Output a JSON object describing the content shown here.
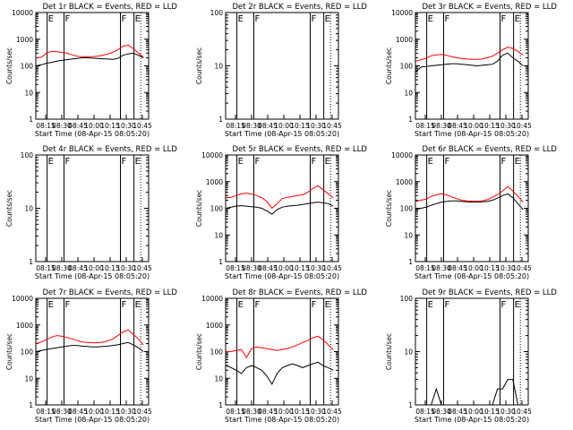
{
  "figure": {
    "xlabel": "Start Time (08-Apr-15 08:05:20)",
    "ylabel": "Counts/sec",
    "xticks": [
      "08:15",
      "08:30",
      "08:45",
      "10:00",
      "10:15",
      "10:30",
      "10:45"
    ],
    "marker_labels": [
      "E",
      "F",
      "F",
      "E"
    ],
    "colors": {
      "events": "#000000",
      "lld": "#ff0000"
    }
  },
  "chart_data": [
    {
      "type": "line",
      "title": "Det 1r BLACK = Events, RED = LLD",
      "ylim": [
        1,
        10000
      ],
      "yticks": [
        "1",
        "10",
        "100",
        "1000",
        "10000"
      ],
      "series": [
        {
          "name": "Events",
          "values": [
            100,
            110,
            125,
            135,
            150,
            160,
            170,
            180,
            190,
            200,
            200,
            195,
            190,
            185,
            180,
            175,
            190,
            250,
            280,
            300,
            250,
            200
          ]
        },
        {
          "name": "LLD",
          "values": [
            200,
            210,
            300,
            350,
            340,
            320,
            300,
            260,
            230,
            220,
            220,
            220,
            230,
            250,
            280,
            320,
            400,
            550,
            600,
            450,
            300,
            210
          ]
        }
      ]
    },
    {
      "type": "line",
      "title": "Det 2r BLACK = Events, RED = LLD",
      "ylim": [
        1,
        100
      ],
      "yticks": [
        "1",
        "10",
        "100"
      ],
      "series": []
    },
    {
      "type": "line",
      "title": "Det 3r BLACK = Events, RED = LLD",
      "ylim": [
        1,
        10000
      ],
      "yticks": [
        "1",
        "10",
        "100",
        "1000",
        "10000"
      ],
      "series": [
        {
          "name": "Events",
          "values": [
            60,
            90,
            95,
            100,
            105,
            110,
            115,
            120,
            120,
            115,
            110,
            105,
            100,
            105,
            110,
            115,
            150,
            250,
            300,
            200,
            150,
            100
          ]
        },
        {
          "name": "LLD",
          "values": [
            150,
            170,
            190,
            240,
            260,
            270,
            250,
            220,
            200,
            190,
            180,
            175,
            175,
            180,
            200,
            230,
            300,
            400,
            500,
            450,
            350,
            250
          ]
        }
      ]
    },
    {
      "type": "line",
      "title": "Det 4r BLACK = Events, RED = LLD",
      "ylim": [
        1,
        100
      ],
      "yticks": [
        "1",
        "10",
        "100"
      ],
      "series": []
    },
    {
      "type": "line",
      "title": "Det 5r BLACK = Events, RED = LLD",
      "ylim": [
        1,
        10000
      ],
      "yticks": [
        "1",
        "10",
        "100",
        "1000",
        "10000"
      ],
      "series": [
        {
          "name": "Events",
          "values": [
            100,
            110,
            120,
            125,
            120,
            115,
            110,
            100,
            80,
            60,
            90,
            110,
            120,
            125,
            130,
            140,
            150,
            160,
            170,
            160,
            150,
            120
          ]
        },
        {
          "name": "LLD",
          "values": [
            250,
            260,
            300,
            350,
            370,
            340,
            300,
            250,
            180,
            100,
            150,
            230,
            260,
            280,
            300,
            320,
            400,
            550,
            700,
            500,
            350,
            250
          ]
        }
      ]
    },
    {
      "type": "line",
      "title": "Det 6r BLACK = Events, RED = LLD",
      "ylim": [
        1,
        10000
      ],
      "yticks": [
        "1",
        "10",
        "100",
        "1000",
        "10000"
      ],
      "series": [
        {
          "name": "Events",
          "values": [
            90,
            100,
            110,
            130,
            150,
            170,
            180,
            190,
            190,
            180,
            175,
            170,
            170,
            175,
            180,
            200,
            240,
            300,
            350,
            250,
            150,
            90
          ]
        },
        {
          "name": "LLD",
          "values": [
            180,
            200,
            220,
            280,
            320,
            350,
            320,
            270,
            230,
            200,
            190,
            185,
            185,
            190,
            210,
            260,
            330,
            450,
            650,
            450,
            280,
            170
          ]
        }
      ]
    },
    {
      "type": "line",
      "title": "Det 7r BLACK = Events, RED = LLD",
      "ylim": [
        1,
        10000
      ],
      "yticks": [
        "1",
        "10",
        "100",
        "1000",
        "10000"
      ],
      "series": [
        {
          "name": "Events",
          "values": [
            100,
            110,
            120,
            130,
            140,
            150,
            160,
            170,
            170,
            160,
            155,
            150,
            150,
            155,
            160,
            170,
            180,
            200,
            220,
            180,
            140,
            100
          ]
        },
        {
          "name": "LLD",
          "values": [
            200,
            230,
            280,
            350,
            400,
            380,
            340,
            300,
            260,
            230,
            220,
            215,
            215,
            225,
            250,
            300,
            400,
            550,
            650,
            450,
            300,
            180
          ]
        }
      ]
    },
    {
      "type": "line",
      "title": "Det 8r BLACK = Events, RED = LLD",
      "ylim": [
        1,
        10000
      ],
      "yticks": [
        "1",
        "10",
        "100",
        "1000",
        "10000"
      ],
      "series": [
        {
          "name": "Events",
          "values": [
            30,
            25,
            20,
            15,
            25,
            30,
            25,
            20,
            12,
            6,
            15,
            25,
            30,
            35,
            30,
            25,
            30,
            35,
            40,
            30,
            25,
            20
          ]
        },
        {
          "name": "LLD",
          "values": [
            100,
            100,
            110,
            120,
            60,
            130,
            150,
            140,
            130,
            120,
            110,
            120,
            130,
            150,
            180,
            220,
            260,
            330,
            380,
            280,
            180,
            120
          ]
        }
      ]
    },
    {
      "type": "line",
      "title": "Det 9r BLACK = Events, RED = LLD",
      "ylim": [
        1,
        100
      ],
      "yticks": [
        "1",
        "10",
        "100"
      ],
      "series": [
        {
          "name": "Events",
          "values": [
            1,
            1,
            1,
            1,
            2,
            1,
            1,
            1,
            1,
            1,
            1,
            1,
            1,
            1,
            1,
            1,
            2,
            2,
            3,
            3,
            1,
            1
          ]
        }
      ]
    }
  ]
}
